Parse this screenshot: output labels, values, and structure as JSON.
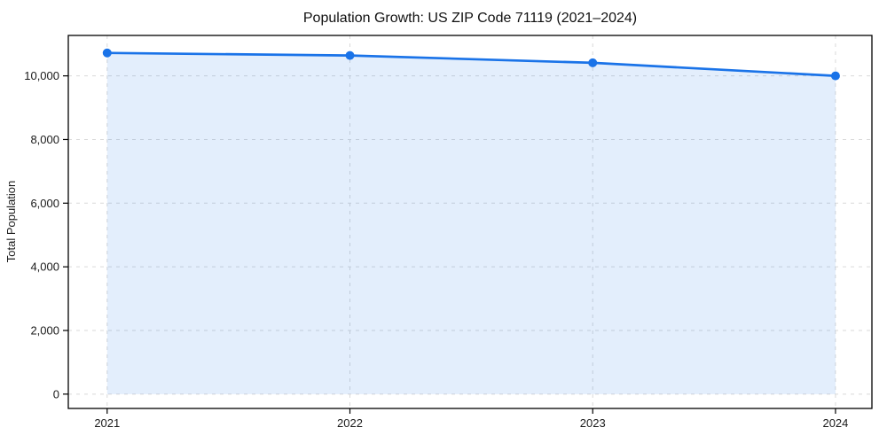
{
  "chart_data": {
    "type": "line",
    "title": "Population Growth: US ZIP Code 71119 (2021–2024)",
    "xlabel": "",
    "ylabel": "Total Population",
    "x": [
      2021,
      2022,
      2023,
      2024
    ],
    "x_tick_labels": [
      "2021",
      "2022",
      "2023",
      "2024"
    ],
    "series": [
      {
        "name": "Total Population",
        "values": [
          10720,
          10640,
          10410,
          10000
        ]
      }
    ],
    "y_ticks": [
      0,
      2000,
      4000,
      6000,
      8000,
      10000
    ],
    "y_tick_labels": [
      "0",
      "2,000",
      "4,000",
      "6,000",
      "8,000",
      "10,000"
    ],
    "xlim": [
      2020.84,
      2024.15
    ],
    "ylim": [
      -450,
      11270
    ],
    "grid": true,
    "grid_style": "dashed",
    "legend": "none",
    "colors": {
      "line": "#1a73e8",
      "marker": "#1a73e8",
      "area_fill": "rgba(26,115,232,0.12)",
      "grid": "#d9d9d9",
      "spine": "#000000",
      "background": "#ffffff"
    }
  }
}
